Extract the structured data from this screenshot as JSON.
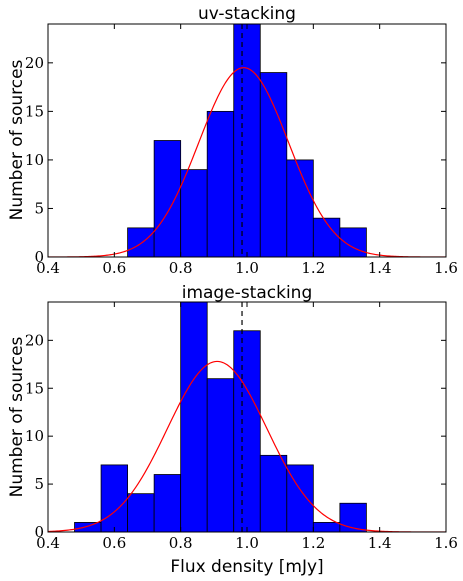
{
  "colors": {
    "bar_fill": "#0000ff",
    "bar_edge": "#000000",
    "fit_curve": "#ff0000",
    "reference_line": "#000000"
  },
  "chart_data": [
    {
      "type": "bar",
      "title": "uv-stacking",
      "xlabel": "",
      "ylabel": "Number of sources",
      "xlim": [
        0.4,
        1.6
      ],
      "ylim": [
        0,
        24
      ],
      "xticks": [
        "0.4",
        "0.6",
        "0.8",
        "1.0",
        "1.2",
        "1.4",
        "1.6"
      ],
      "yticks": [
        "0",
        "5",
        "10",
        "15",
        "20"
      ],
      "bin_edges": [
        0.64,
        0.72,
        0.8,
        0.88,
        0.96,
        1.04,
        1.12,
        1.2,
        1.28,
        1.36
      ],
      "values": [
        3,
        12,
        9,
        15,
        25,
        19,
        10,
        4,
        3
      ],
      "fit": {
        "type": "gaussian",
        "amplitude": 19.5,
        "mean": 0.99,
        "sigma": 0.135
      },
      "reference_x": 0.985,
      "grid": false
    },
    {
      "type": "bar",
      "title": "image-stacking",
      "xlabel": "Flux density [mJy]",
      "ylabel": "Number of sources",
      "xlim": [
        0.4,
        1.6
      ],
      "ylim": [
        0,
        24
      ],
      "xticks": [
        "0.4",
        "0.6",
        "0.8",
        "1.0",
        "1.2",
        "1.4",
        "1.6"
      ],
      "yticks": [
        "0",
        "5",
        "10",
        "15",
        "20"
      ],
      "bin_edges": [
        0.48,
        0.56,
        0.64,
        0.72,
        0.8,
        0.88,
        0.96,
        1.04,
        1.12,
        1.2,
        1.28,
        1.36
      ],
      "values": [
        1,
        7,
        4,
        6,
        25,
        16,
        21,
        8,
        7,
        1,
        3
      ],
      "fit": {
        "type": "gaussian",
        "amplitude": 17.8,
        "mean": 0.91,
        "sigma": 0.15
      },
      "reference_x": 0.985,
      "grid": false
    }
  ]
}
